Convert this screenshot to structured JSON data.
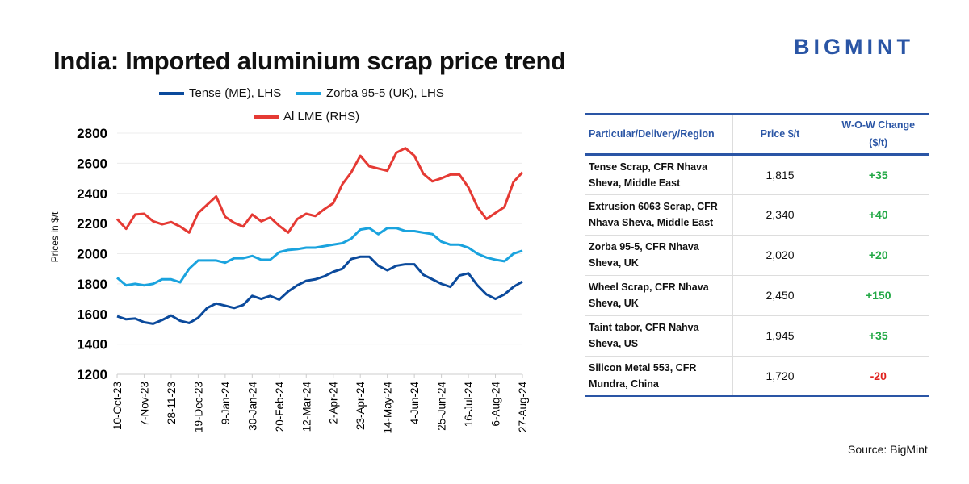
{
  "brand": "BIGMINT",
  "source": "Source: BigMint",
  "colors": {
    "tense": "#0b4a9c",
    "zorba": "#1aa3de",
    "lme": "#e53a34",
    "brand": "#2a55a5",
    "positive": "#22a845",
    "negative": "#e0201d"
  },
  "chart_data": {
    "type": "line",
    "title": "India: Imported aluminium scrap price trend",
    "ylabel": "Prices in $/t",
    "xlabel": "",
    "ylim": [
      1200,
      2800
    ],
    "yticks": [
      1200,
      1400,
      1600,
      1800,
      2000,
      2200,
      2400,
      2600,
      2800
    ],
    "grid": true,
    "legend_position": "top",
    "xtick_labels": [
      "10-Oct-23",
      "7-Nov-23",
      "28-11-23",
      "19-Dec-23",
      "9-Jan-24",
      "30-Jan-24",
      "20-Feb-24",
      "12-Mar-24",
      "2-Apr-24",
      "23-Apr-24",
      "14-May-24",
      "4-Jun-24",
      "25-Jun-24",
      "16-Jul-24",
      "6-Aug-24",
      "27-Aug-24"
    ],
    "series": [
      {
        "name": "Tense (ME), LHS",
        "color": "#0b4a9c",
        "values": [
          1585,
          1565,
          1570,
          1545,
          1535,
          1560,
          1590,
          1555,
          1540,
          1575,
          1640,
          1670,
          1655,
          1640,
          1660,
          1720,
          1700,
          1720,
          1695,
          1750,
          1790,
          1820,
          1830,
          1850,
          1880,
          1900,
          1965,
          1980,
          1980,
          1920,
          1890,
          1920,
          1930,
          1930,
          1860,
          1830,
          1800,
          1780,
          1855,
          1870,
          1790,
          1730,
          1700,
          1730,
          1780,
          1815
        ]
      },
      {
        "name": "Zorba 95-5 (UK), LHS",
        "color": "#1aa3de",
        "values": [
          1840,
          1790,
          1800,
          1790,
          1800,
          1830,
          1830,
          1810,
          1900,
          1955,
          1955,
          1955,
          1940,
          1970,
          1970,
          1985,
          1960,
          1960,
          2010,
          2025,
          2030,
          2040,
          2040,
          2050,
          2060,
          2070,
          2100,
          2160,
          2170,
          2130,
          2170,
          2170,
          2150,
          2150,
          2140,
          2130,
          2080,
          2060,
          2060,
          2040,
          2000,
          1975,
          1960,
          1950,
          2000,
          2020
        ]
      },
      {
        "name": "Al LME (RHS)",
        "color": "#e53a34",
        "values": [
          2230,
          2165,
          2260,
          2265,
          2215,
          2195,
          2210,
          2180,
          2140,
          2270,
          2325,
          2380,
          2245,
          2205,
          2180,
          2260,
          2215,
          2240,
          2185,
          2140,
          2230,
          2265,
          2250,
          2295,
          2335,
          2460,
          2540,
          2650,
          2580,
          2565,
          2550,
          2670,
          2700,
          2650,
          2530,
          2480,
          2500,
          2525,
          2525,
          2440,
          2310,
          2230,
          2270,
          2310,
          2475,
          2540
        ]
      }
    ]
  },
  "table": {
    "headers": [
      "Particular/Delivery/Region",
      "Price $/t",
      "W-O-W Change ($/t)"
    ],
    "rows": [
      {
        "item": "Tense Scrap, CFR Nhava Sheva, Middle East",
        "price": "1,815",
        "change": "+35"
      },
      {
        "item": "Extrusion 6063 Scrap, CFR Nhava Sheva, Middle East",
        "price": "2,340",
        "change": "+40"
      },
      {
        "item": "Zorba 95-5, CFR Nhava Sheva, UK",
        "price": "2,020",
        "change": "+20"
      },
      {
        "item": "Wheel Scrap, CFR Nhava Sheva, UK",
        "price": "2,450",
        "change": "+150"
      },
      {
        "item": "Taint tabor, CFR Nahva Sheva, US",
        "price": "1,945",
        "change": "+35"
      },
      {
        "item": "Silicon Metal 553, CFR Mundra, China",
        "price": "1,720",
        "change": "-20"
      }
    ]
  }
}
